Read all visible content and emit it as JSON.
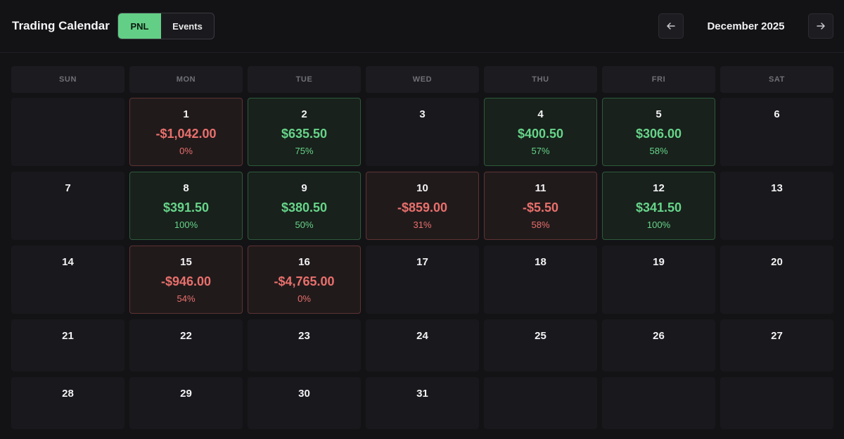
{
  "header": {
    "title": "Trading Calendar",
    "tabs": [
      {
        "label": "PNL",
        "active": true
      },
      {
        "label": "Events",
        "active": false
      }
    ],
    "month_label": "December 2025",
    "prev_icon": "arrow-left-icon",
    "next_icon": "arrow-right-icon"
  },
  "colors": {
    "accent": "#63cf86",
    "profit": "#67d48a",
    "loss": "#e8706c",
    "background": "#131316"
  },
  "weekdays": [
    "SUN",
    "MON",
    "TUE",
    "WED",
    "THU",
    "FRI",
    "SAT"
  ],
  "days": [
    {
      "day": ""
    },
    {
      "day": "1",
      "pnl": "-$1,042.00",
      "rate": "0%",
      "status": "loss"
    },
    {
      "day": "2",
      "pnl": "$635.50",
      "rate": "75%",
      "status": "profit"
    },
    {
      "day": "3"
    },
    {
      "day": "4",
      "pnl": "$400.50",
      "rate": "57%",
      "status": "profit"
    },
    {
      "day": "5",
      "pnl": "$306.00",
      "rate": "58%",
      "status": "profit"
    },
    {
      "day": "6"
    },
    {
      "day": "7"
    },
    {
      "day": "8",
      "pnl": "$391.50",
      "rate": "100%",
      "status": "profit"
    },
    {
      "day": "9",
      "pnl": "$380.50",
      "rate": "50%",
      "status": "profit"
    },
    {
      "day": "10",
      "pnl": "-$859.00",
      "rate": "31%",
      "status": "loss"
    },
    {
      "day": "11",
      "pnl": "-$5.50",
      "rate": "58%",
      "status": "loss"
    },
    {
      "day": "12",
      "pnl": "$341.50",
      "rate": "100%",
      "status": "profit"
    },
    {
      "day": "13"
    },
    {
      "day": "14"
    },
    {
      "day": "15",
      "pnl": "-$946.00",
      "rate": "54%",
      "status": "loss"
    },
    {
      "day": "16",
      "pnl": "-$4,765.00",
      "rate": "0%",
      "status": "loss"
    },
    {
      "day": "17"
    },
    {
      "day": "18"
    },
    {
      "day": "19"
    },
    {
      "day": "20"
    },
    {
      "day": "21"
    },
    {
      "day": "22"
    },
    {
      "day": "23"
    },
    {
      "day": "24"
    },
    {
      "day": "25"
    },
    {
      "day": "26"
    },
    {
      "day": "27"
    },
    {
      "day": "28"
    },
    {
      "day": "29"
    },
    {
      "day": "30"
    },
    {
      "day": "31"
    },
    {
      "day": ""
    },
    {
      "day": ""
    },
    {
      "day": ""
    }
  ]
}
